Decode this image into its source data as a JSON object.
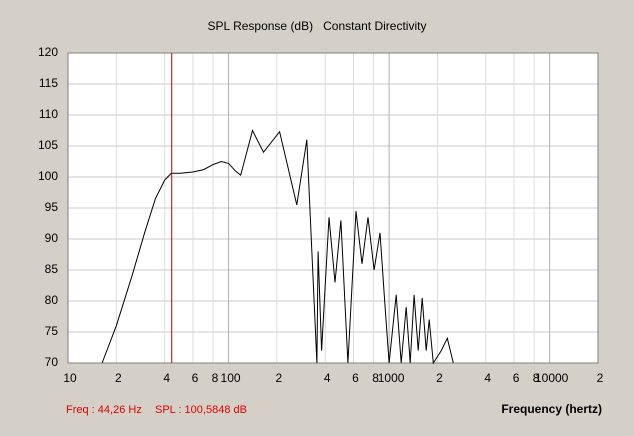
{
  "chart_data": {
    "type": "line",
    "title": "SPL Response (dB)   Constant Directivity",
    "xlabel": "Frequency (hertz)",
    "log_x": true,
    "grid": true,
    "xlim": [
      10,
      20000
    ],
    "ylim": [
      70,
      120
    ],
    "yticks": [
      70,
      75,
      80,
      85,
      90,
      95,
      100,
      105,
      110,
      115,
      120
    ],
    "xticks": [
      10,
      {
        "value": 20,
        "label": "2"
      },
      {
        "value": 40,
        "label": "4"
      },
      {
        "value": 60,
        "label": "6"
      },
      {
        "value": 80,
        "label": "8"
      },
      100,
      {
        "value": 200,
        "label": "2"
      },
      {
        "value": 400,
        "label": "4"
      },
      {
        "value": 600,
        "label": "6"
      },
      {
        "value": 800,
        "label": "8"
      },
      1000,
      {
        "value": 2000,
        "label": "2"
      },
      {
        "value": 4000,
        "label": "4"
      },
      {
        "value": 6000,
        "label": "6"
      },
      {
        "value": 8000,
        "label": "8"
      },
      10000,
      {
        "value": 20000,
        "label": "2"
      }
    ],
    "series": [
      {
        "name": "SPL",
        "color": "#000000",
        "x": [
          16.3,
          20,
          25,
          30,
          35,
          40,
          44,
          50,
          60,
          70,
          80,
          90,
          100,
          110,
          119,
          141,
          165,
          208,
          266,
          307,
          355,
          361,
          380,
          422,
          460,
          501,
          554,
          622,
          678,
          739,
          806,
          878,
          944,
          1000,
          1107,
          1189,
          1277,
          1353,
          1432,
          1517,
          1608,
          1702,
          1778,
          1884,
          2113,
          2304,
          2512
        ],
        "values": [
          70,
          76,
          84,
          91,
          96.5,
          99.5,
          100.6,
          100.6,
          100.8,
          101.2,
          102,
          102.5,
          102.2,
          101,
          100.3,
          107.5,
          104,
          107.3,
          95.5,
          106,
          70,
          88,
          72,
          93.5,
          83,
          93,
          70,
          94.5,
          86,
          93.5,
          85,
          91,
          79,
          70,
          81,
          70,
          79,
          70,
          81,
          72,
          80.5,
          72,
          77,
          70,
          72,
          74,
          70
        ]
      }
    ],
    "cursor": {
      "x": 44.26,
      "color": "#c00000",
      "freq_label": "Freq : 44,26 Hz",
      "spl_label": "SPL : 100,5848 dB"
    }
  }
}
